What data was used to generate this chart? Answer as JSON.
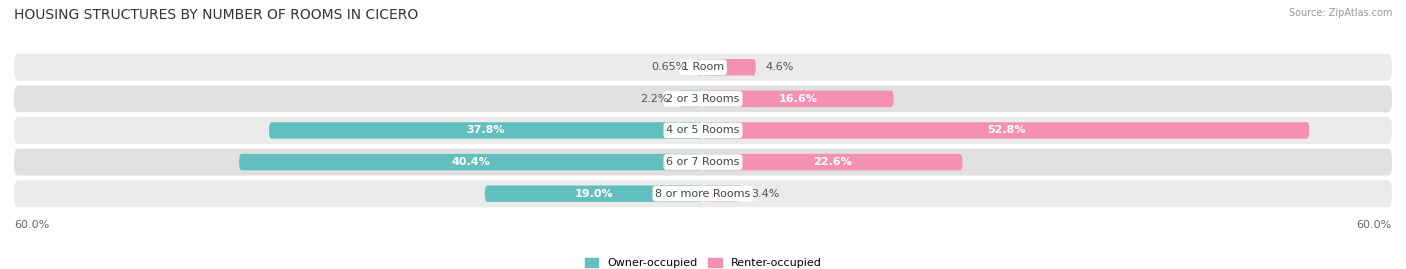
{
  "title": "HOUSING STRUCTURES BY NUMBER OF ROOMS IN CICERO",
  "source": "Source: ZipAtlas.com",
  "categories": [
    "1 Room",
    "2 or 3 Rooms",
    "4 or 5 Rooms",
    "6 or 7 Rooms",
    "8 or more Rooms"
  ],
  "owner_values": [
    0.65,
    2.2,
    37.8,
    40.4,
    19.0
  ],
  "renter_values": [
    4.6,
    16.6,
    52.8,
    22.6,
    3.4
  ],
  "owner_color": "#62bfbe",
  "renter_color": "#f490b2",
  "owner_label": "Owner-occupied",
  "renter_label": "Renter-occupied",
  "axis_limit": 60.0,
  "bar_height": 0.52,
  "row_colors": [
    "#ebebeb",
    "#e0e0e0"
  ],
  "title_fontsize": 10,
  "label_fontsize": 8,
  "axis_label_fontsize": 8,
  "legend_fontsize": 8,
  "category_fontsize": 8
}
